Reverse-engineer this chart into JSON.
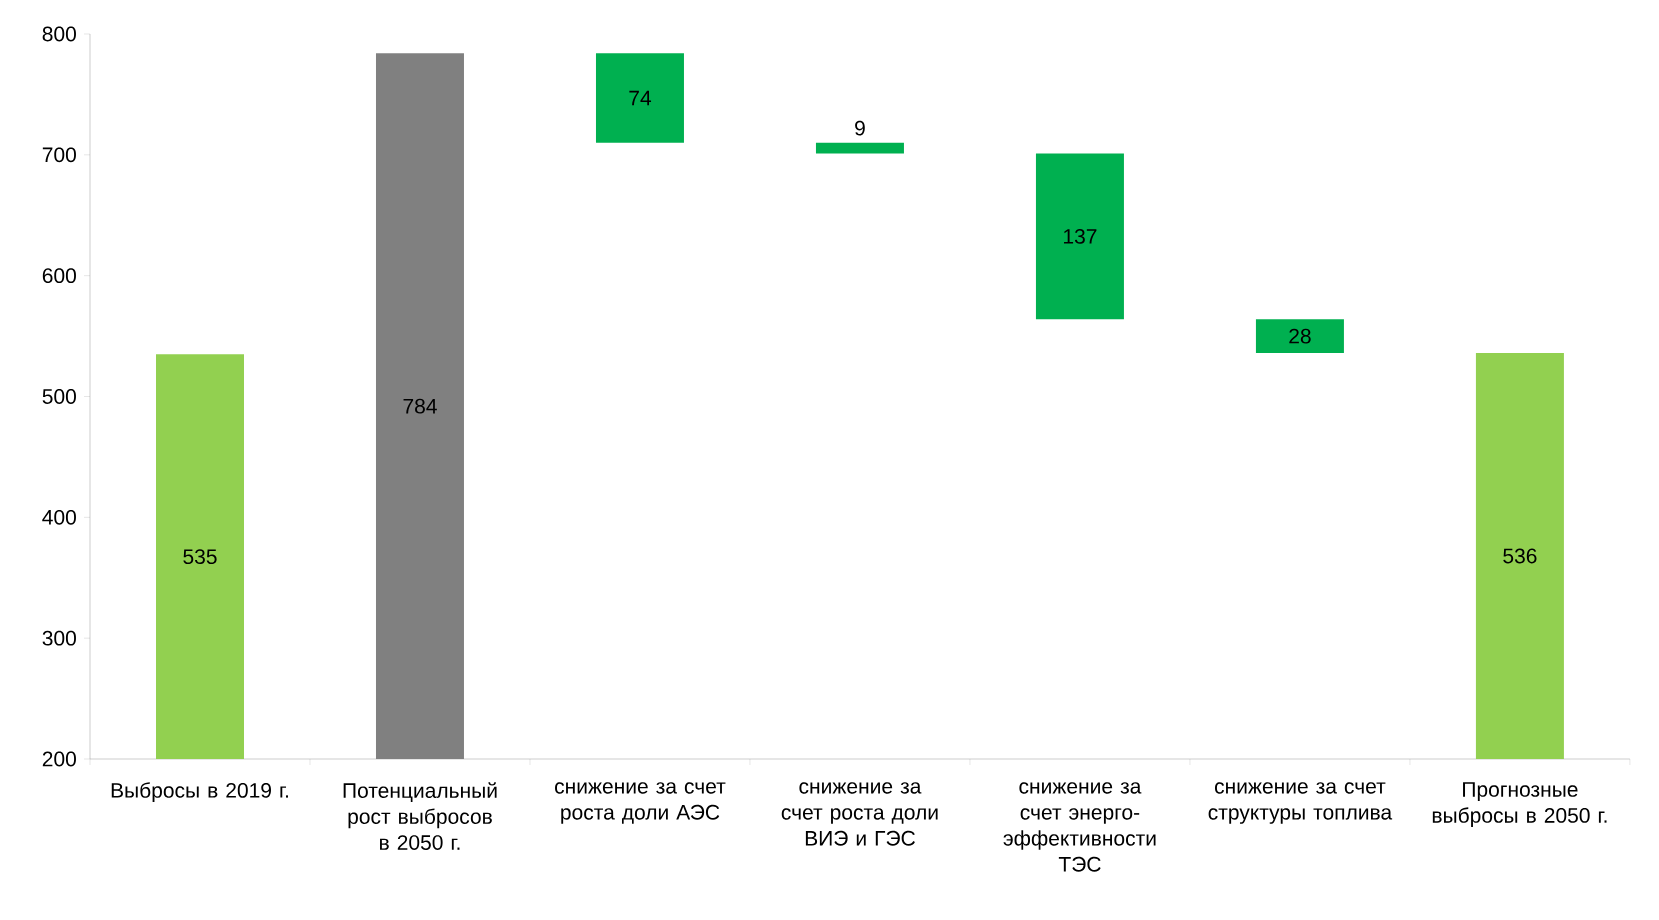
{
  "chart_data": {
    "type": "bar",
    "categories": [
      "Выбросы в 2019 г.",
      "Потенциальный рост выбросов в 2050 г.",
      "снижение за счет роста доли АЭС",
      "снижение за счет роста доли ВИЭ и ГЭС",
      "снижение за счет энерго-эффективности ТЭС",
      "снижение за счет структуры топлива",
      "Прогнозные выбросы в 2050 г."
    ],
    "values": [
      535,
      784,
      74,
      9,
      137,
      28,
      536
    ],
    "base": [
      null,
      null,
      710,
      701,
      564,
      536,
      null
    ],
    "colors": [
      "#92d050",
      "#808080",
      "#00b050",
      "#00b050",
      "#00b050",
      "#00b050",
      "#92d050"
    ],
    "ylim": [
      200,
      800
    ],
    "yticks": [
      200,
      300,
      400,
      500,
      600,
      700,
      800
    ],
    "data_labels": true,
    "grid": false
  }
}
